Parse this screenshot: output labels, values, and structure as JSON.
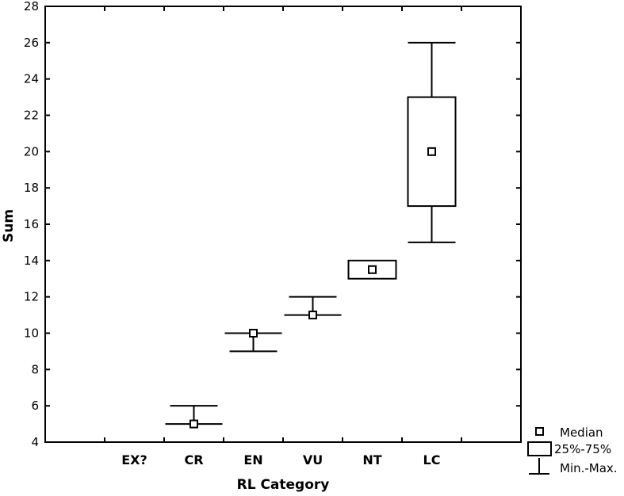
{
  "chart_data": {
    "type": "boxplot",
    "title": "",
    "xlabel": "RL Category",
    "ylabel": "Sum",
    "ylim": [
      4,
      28
    ],
    "yticks": [
      4,
      6,
      8,
      10,
      12,
      14,
      16,
      18,
      20,
      22,
      24,
      26,
      28
    ],
    "categories": [
      "EX?",
      "CR",
      "EN",
      "VU",
      "NT",
      "LC"
    ],
    "boxes": [
      {
        "category": "EX?",
        "min": null,
        "q1": null,
        "median": null,
        "q3": null,
        "max": null
      },
      {
        "category": "CR",
        "min": 5,
        "q1": 5,
        "median": 5,
        "q3": 5,
        "max": 6
      },
      {
        "category": "EN",
        "min": 9,
        "q1": 10,
        "median": 10,
        "q3": 10,
        "max": 10
      },
      {
        "category": "VU",
        "min": 11,
        "q1": 11,
        "median": 11,
        "q3": 11,
        "max": 12
      },
      {
        "category": "NT",
        "min": 13,
        "q1": 13,
        "median": 13.5,
        "q3": 14,
        "max": 14
      },
      {
        "category": "LC",
        "min": 15,
        "q1": 17,
        "median": 20,
        "q3": 23,
        "max": 26
      }
    ],
    "legend": {
      "position": "bottom-right",
      "entries": [
        "Median",
        "25%-75%",
        "Min.-Max."
      ]
    },
    "grid": false
  }
}
